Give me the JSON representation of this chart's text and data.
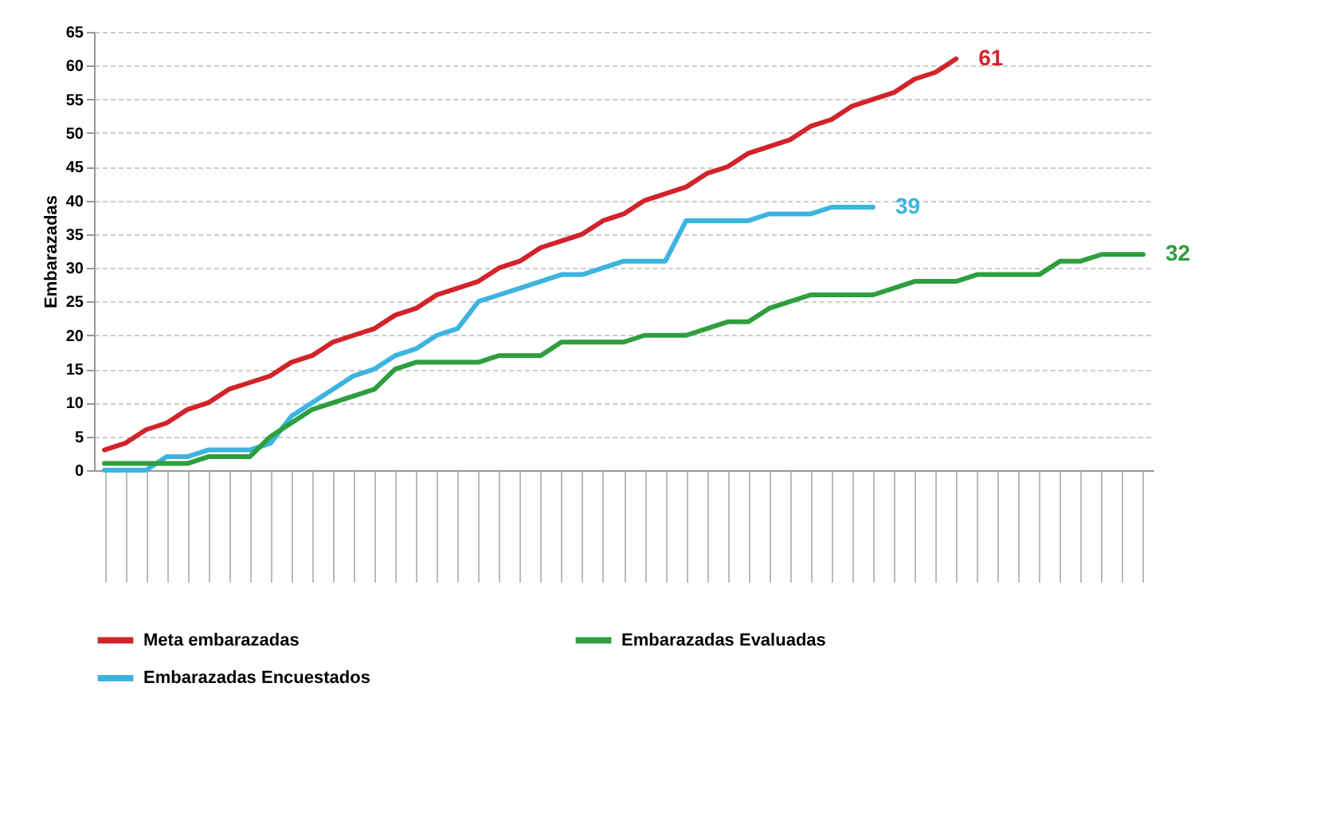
{
  "chart_data": {
    "type": "line",
    "ylabel": "Embarazadas",
    "categories": [
      null,
      null,
      null,
      null,
      null,
      null,
      null,
      null,
      null,
      null,
      null,
      null,
      null,
      null,
      null,
      null,
      null,
      null,
      null,
      null,
      null,
      null,
      null,
      null,
      null,
      null,
      null,
      null,
      null,
      null,
      null,
      null,
      null,
      null,
      null,
      null,
      null,
      null,
      null,
      null,
      null,
      null,
      null,
      null,
      null,
      null,
      null,
      null,
      null,
      null,
      null
    ],
    "ylim": [
      0,
      65
    ],
    "yticks": [
      0,
      5,
      10,
      15,
      20,
      25,
      30,
      35,
      40,
      45,
      50,
      55,
      60,
      65
    ],
    "grid": "y",
    "legend": "bottom",
    "marker": "none",
    "line_style": "solid",
    "series": [
      {
        "name": "Meta embarazadas",
        "color": "#d2232a",
        "values": [
          3,
          4,
          6,
          7,
          9,
          10,
          12,
          13,
          14,
          16,
          17,
          19,
          20,
          21,
          23,
          24,
          26,
          27,
          28,
          30,
          31,
          33,
          34,
          35,
          37,
          38,
          40,
          41,
          42,
          44,
          45,
          47,
          48,
          49,
          51,
          52,
          54,
          55,
          56,
          58,
          59,
          61,
          null,
          null,
          null,
          null,
          null,
          null,
          null,
          null,
          null
        ],
        "value_labels": [
          null,
          null,
          null,
          null,
          null,
          null,
          null,
          null,
          null,
          null,
          null,
          null,
          null,
          null,
          null,
          null,
          null,
          null,
          null,
          null,
          null,
          null,
          null,
          null,
          null,
          null,
          null,
          null,
          null,
          null,
          null,
          null,
          null,
          null,
          null,
          null,
          null,
          null,
          null,
          null,
          null,
          "61",
          null,
          null,
          null,
          null,
          null,
          null,
          null,
          null,
          null
        ]
      },
      {
        "name": "Embarazadas Evaluadas",
        "color": "#2e9e3e",
        "values": [
          1,
          1,
          1,
          1,
          1,
          2,
          2,
          2,
          5,
          7,
          9,
          10,
          11,
          12,
          15,
          16,
          16,
          16,
          16,
          17,
          17,
          17,
          19,
          19,
          19,
          19,
          20,
          20,
          20,
          21,
          22,
          22,
          24,
          25,
          26,
          26,
          26,
          26,
          27,
          28,
          28,
          28,
          29,
          29,
          29,
          29,
          31,
          31,
          32,
          32,
          32
        ],
        "value_labels": [
          null,
          null,
          null,
          null,
          null,
          null,
          null,
          null,
          null,
          null,
          null,
          null,
          null,
          null,
          null,
          null,
          null,
          null,
          null,
          null,
          null,
          null,
          null,
          null,
          null,
          null,
          null,
          null,
          null,
          null,
          null,
          null,
          null,
          null,
          null,
          null,
          null,
          null,
          null,
          null,
          null,
          null,
          null,
          null,
          null,
          null,
          null,
          null,
          null,
          null,
          "32"
        ]
      },
      {
        "name": "Embarazadas Encuestados",
        "color": "#3cb4e0",
        "values": [
          0,
          0,
          0,
          2,
          2,
          3,
          3,
          3,
          4,
          8,
          10,
          12,
          14,
          15,
          17,
          18,
          20,
          21,
          25,
          26,
          27,
          28,
          29,
          29,
          30,
          31,
          31,
          31,
          37,
          37,
          37,
          37,
          38,
          38,
          38,
          39,
          39,
          39,
          null,
          null,
          null,
          null,
          null,
          null,
          null,
          null,
          null,
          null,
          null,
          null,
          null
        ],
        "value_labels": [
          null,
          null,
          null,
          null,
          null,
          null,
          null,
          null,
          null,
          null,
          null,
          null,
          null,
          null,
          null,
          null,
          null,
          null,
          null,
          null,
          null,
          null,
          null,
          null,
          null,
          null,
          null,
          null,
          null,
          null,
          null,
          null,
          null,
          null,
          null,
          null,
          null,
          "39",
          null,
          null,
          null,
          null,
          null,
          null,
          null,
          null,
          null,
          null,
          null,
          null,
          null
        ]
      }
    ]
  }
}
